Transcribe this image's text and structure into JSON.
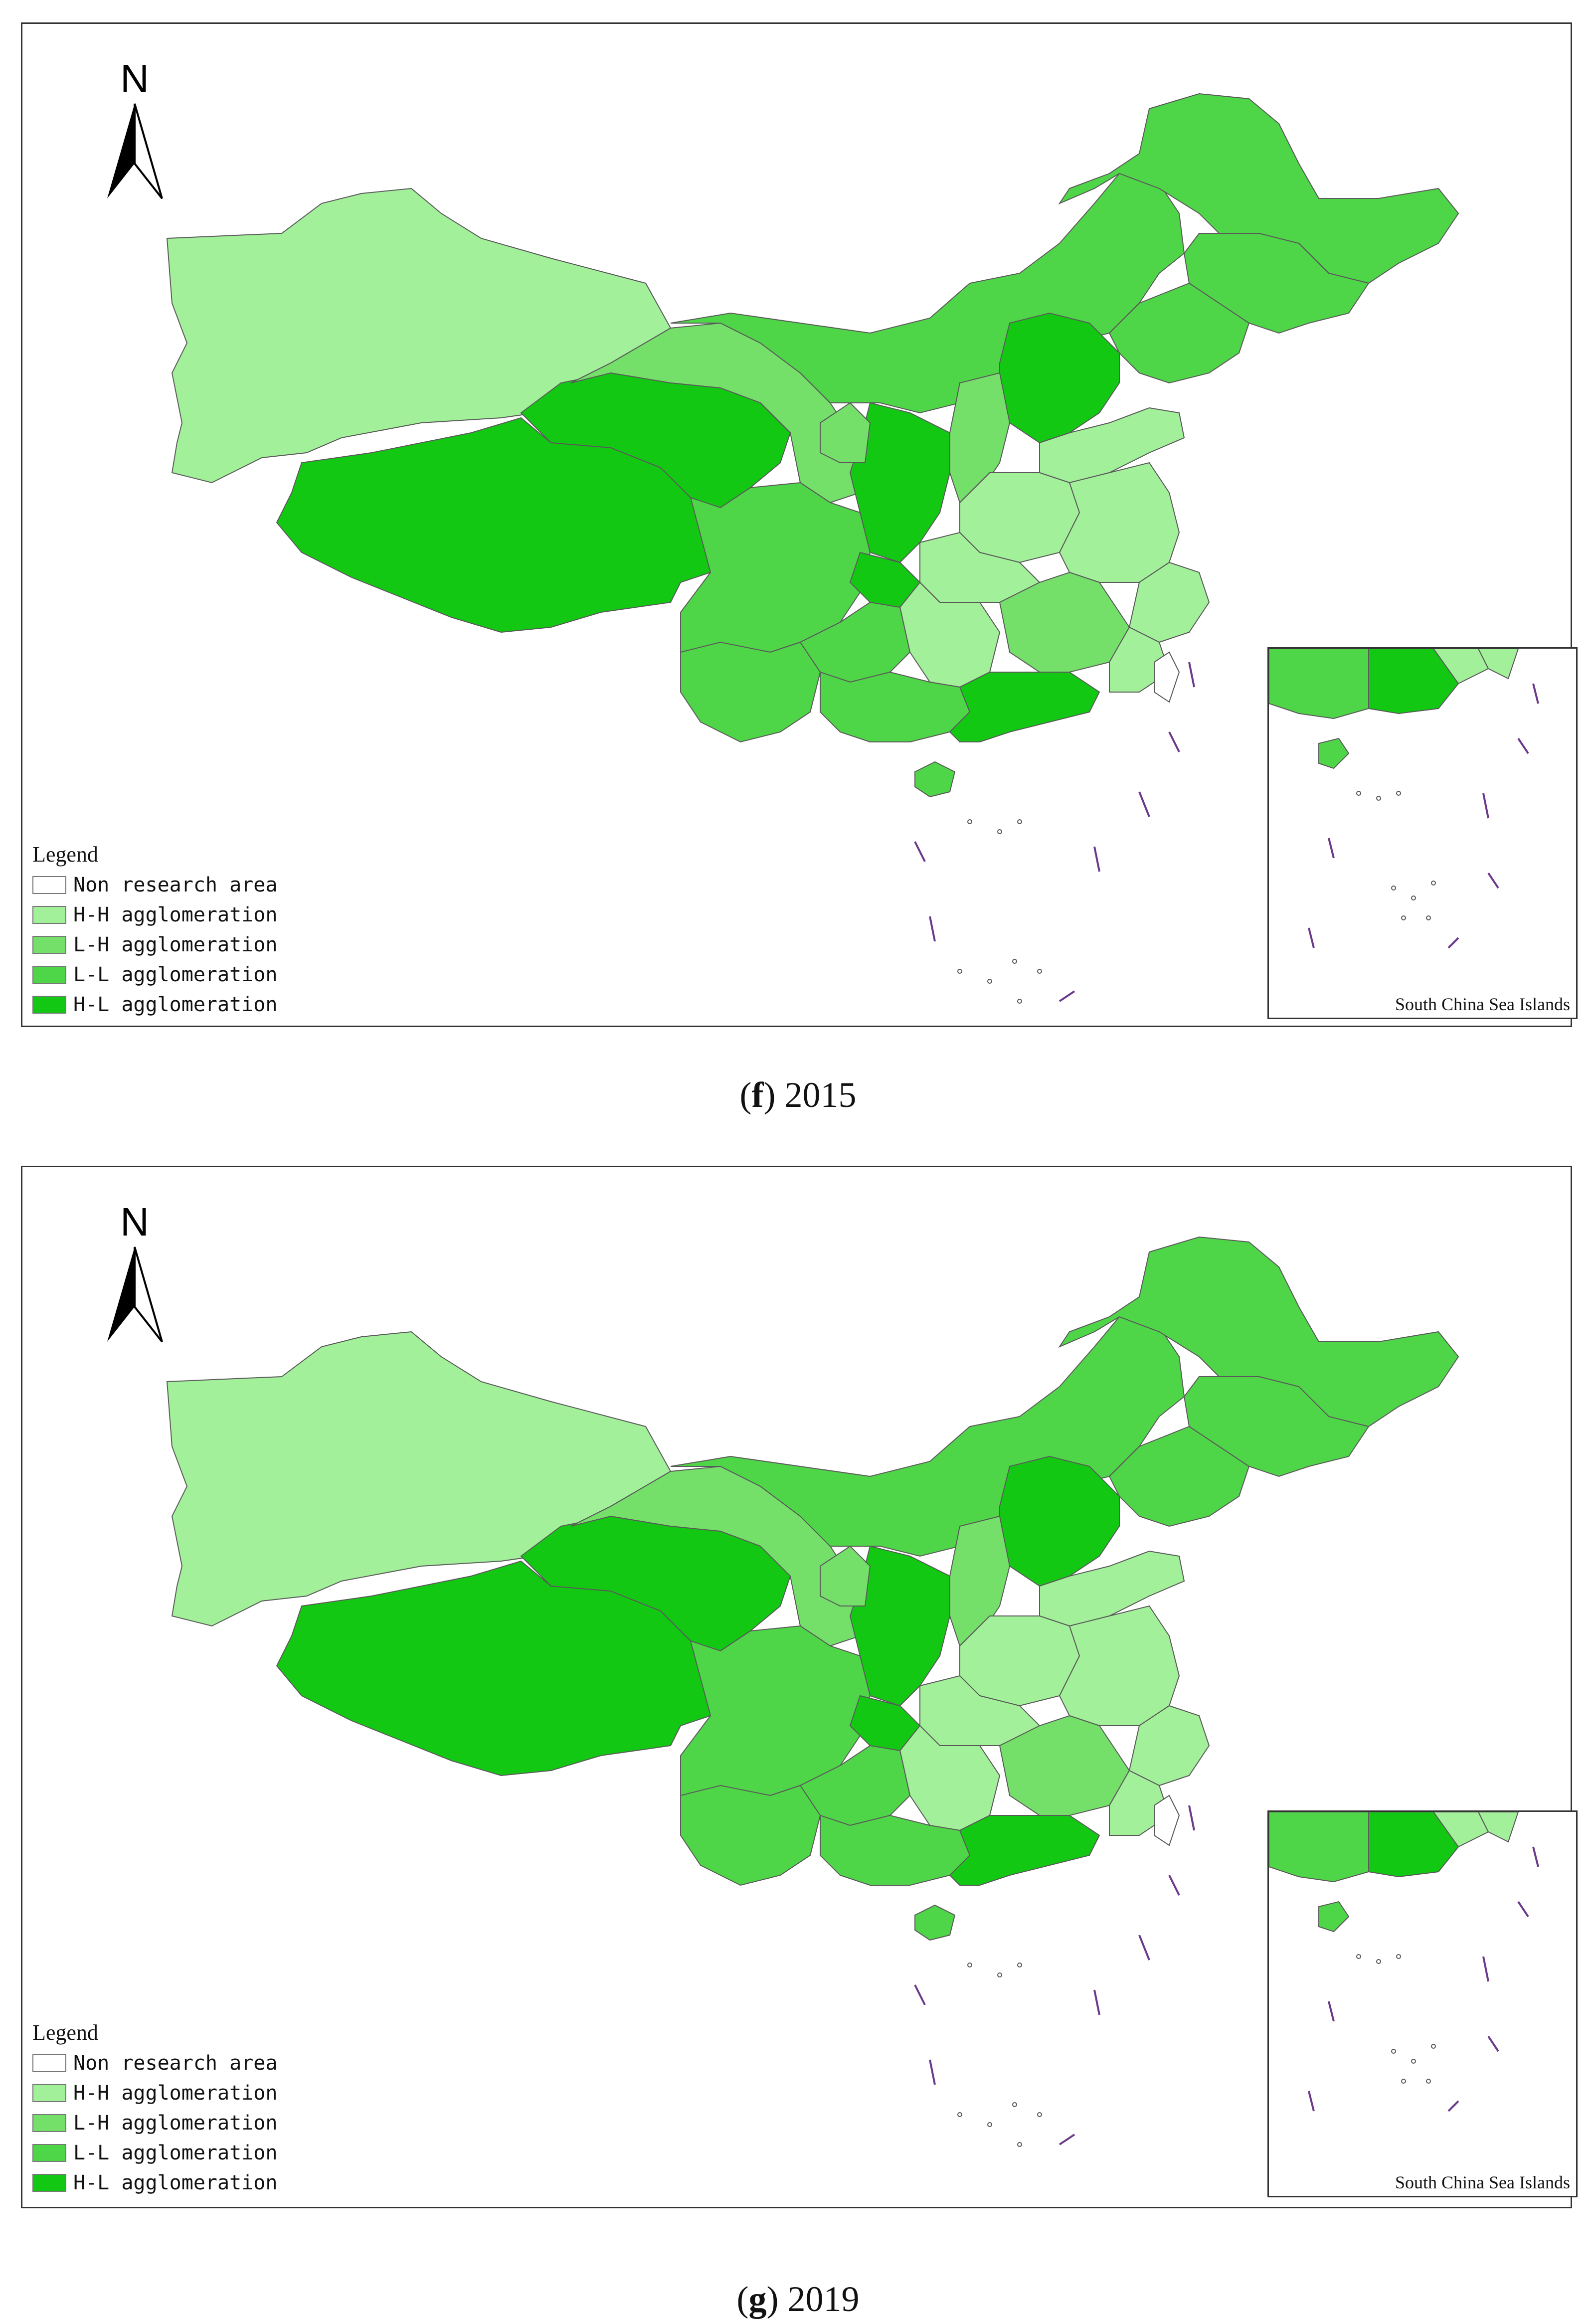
{
  "figure": {
    "panels": [
      {
        "id": "f",
        "label": "f",
        "year": "2015"
      },
      {
        "id": "g",
        "label": "g",
        "year": "2019"
      }
    ],
    "north_arrow": {
      "label": "N"
    },
    "legend": {
      "title": "Legend",
      "items": [
        {
          "key": "non_research",
          "label": "Non research area",
          "color": "#ffffff"
        },
        {
          "key": "hh",
          "label": "H-H agglomeration",
          "color": "#a3f09a"
        },
        {
          "key": "lh",
          "label": "L-H agglomeration",
          "color": "#74e06a"
        },
        {
          "key": "ll",
          "label": "L-L agglomeration",
          "color": "#4fd648"
        },
        {
          "key": "hl",
          "label": "H-L agglomeration",
          "color": "#12c812"
        }
      ]
    },
    "inset_label": "South China Sea Islands",
    "border_color": "#5a5a5a",
    "dash_color": "#6b3a8a"
  }
}
